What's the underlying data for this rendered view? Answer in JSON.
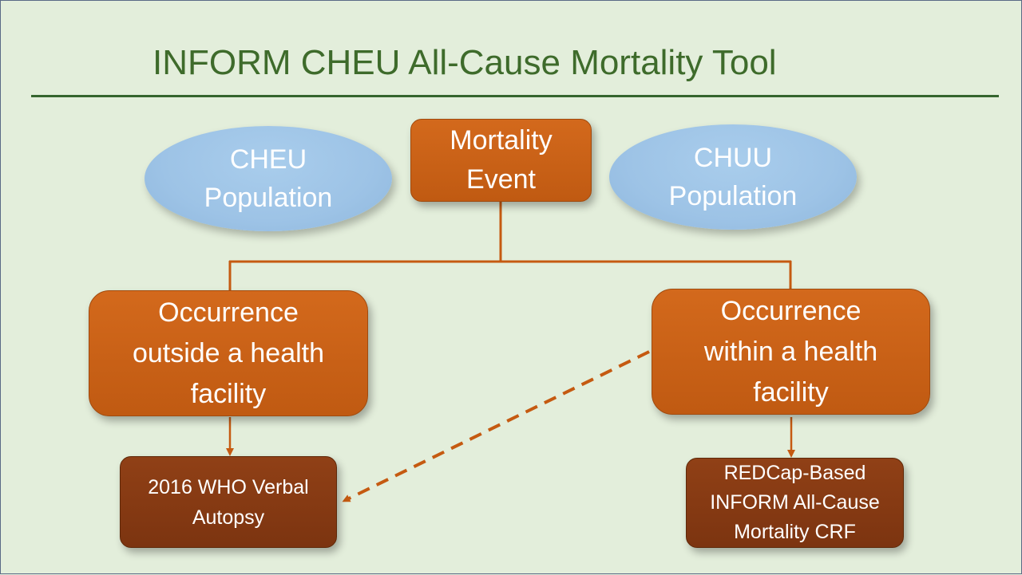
{
  "title": "INFORM CHEU All-Cause Mortality Tool",
  "nodes": {
    "cheu_population": {
      "lines": [
        "CHEU",
        "Population"
      ]
    },
    "mortality_event": {
      "lines": [
        "Mortality",
        "Event"
      ]
    },
    "chuu_population": {
      "lines": [
        "CHUU",
        "Population"
      ]
    },
    "outside_facility": {
      "lines": [
        "Occurrence",
        "outside a health",
        "facility"
      ]
    },
    "within_facility": {
      "lines": [
        "Occurrence",
        "within a health",
        "facility"
      ]
    },
    "verbal_autopsy": {
      "lines": [
        "2016 WHO Verbal",
        "Autopsy"
      ]
    },
    "redcap_crf": {
      "lines": [
        "REDCap-Based",
        "INFORM All-Cause",
        "Mortality CRF"
      ]
    }
  },
  "colors": {
    "background": "#e3eedb",
    "title": "#3e6b2b",
    "ellipse_fill": "#9dc3e6",
    "box_orange": "#c55a11",
    "box_brown": "#843c0c",
    "connector": "#c55a11"
  }
}
